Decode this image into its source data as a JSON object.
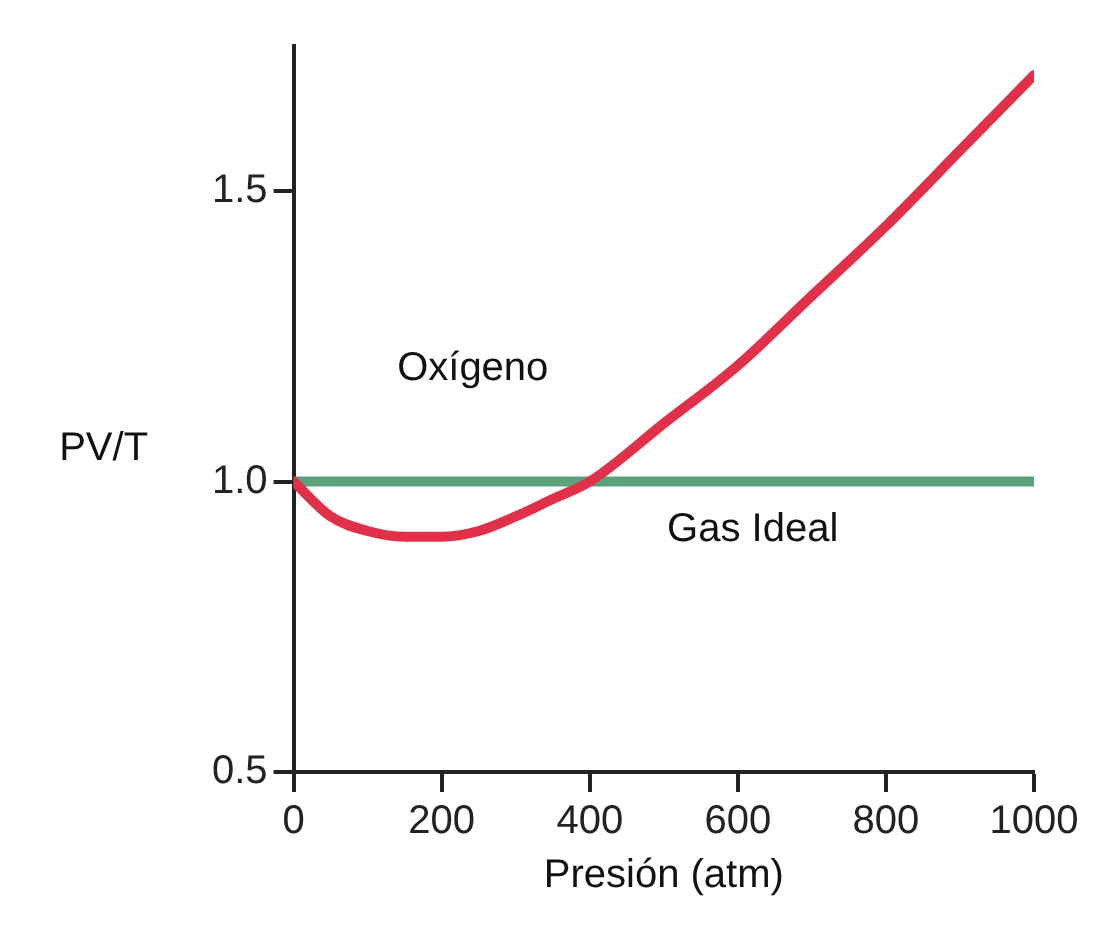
{
  "chart_data": {
    "type": "line",
    "ylabel": "PV/T",
    "xlabel": "Presión (atm)",
    "xlim": [
      0,
      1000
    ],
    "xticks": [
      0,
      200,
      400,
      600,
      800,
      1000
    ],
    "ylim": [
      0.5,
      1.75
    ],
    "yticks": [
      {
        "value": 0.5,
        "label": "0.5"
      },
      {
        "value": 1.0,
        "label": "1.0"
      },
      {
        "value": 1.5,
        "label": "1.5"
      }
    ],
    "grid": false,
    "legend": false,
    "marker": "none",
    "series": [
      {
        "name": "Oxígeno",
        "color": "#e0304a",
        "x": [
          0,
          50,
          100,
          150,
          200,
          250,
          300,
          350,
          400,
          500,
          600,
          700,
          800,
          900,
          1000
        ],
        "values": [
          1.0,
          0.94,
          0.915,
          0.905,
          0.905,
          0.915,
          0.94,
          0.97,
          1.0,
          1.1,
          1.2,
          1.32,
          1.44,
          1.57,
          1.7
        ]
      },
      {
        "name": "Gas Ideal",
        "color": "#5aa37a",
        "x": [
          0,
          1000
        ],
        "values": [
          1.0,
          1.0
        ]
      }
    ]
  }
}
